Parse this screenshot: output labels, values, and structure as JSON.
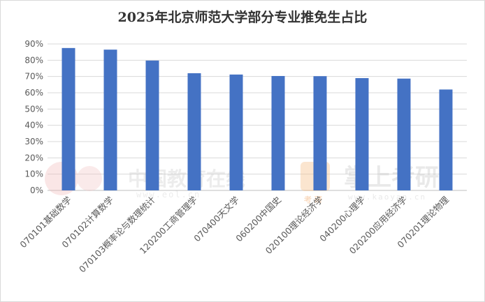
{
  "chart_data": {
    "type": "bar",
    "title": "2025年北京师范大学部分专业推免生占比",
    "categories": [
      "070101基础数学",
      "070102计算数学",
      "070103概率论与数理统计",
      "120200工商管理学",
      "070400天文学",
      "060200中国史",
      "020100理论经济学",
      "040200心理学",
      "020200应用经济学",
      "070201理论物理"
    ],
    "series": [
      {
        "values": [
          87.5,
          86.5,
          79.8,
          72.0,
          71.2,
          70.3,
          70.2,
          69.0,
          68.7,
          62.0
        ]
      }
    ],
    "ylim": [
      0,
      90
    ],
    "yticks": [
      "0%",
      "10%",
      "20%",
      "30%",
      "40%",
      "50%",
      "60%",
      "70%",
      "80%",
      "90%"
    ],
    "grid": true,
    "legend": "none",
    "bar_color": "#4472c4"
  },
  "watermarks": {
    "eol_text": "中国教育在线",
    "eol_url": "www.eol.cn",
    "kaoyan_text": "掌上考研",
    "kaoyan_url": "www.kaoyan.cn",
    "kaoyan_badge": "考 研"
  }
}
